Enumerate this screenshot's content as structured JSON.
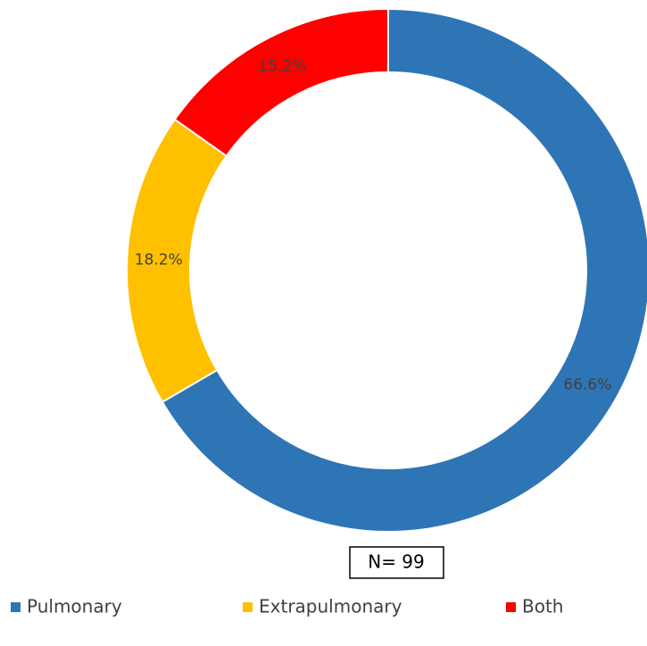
{
  "chart_data": {
    "type": "donut",
    "categories": [
      "Pulmonary",
      "Extrapulmonary",
      "Both"
    ],
    "values": [
      66.6,
      18.2,
      15.2
    ],
    "value_labels": [
      "66.6%",
      "18.2%",
      "15.2%"
    ],
    "colors": [
      "#2e75b6",
      "#ffc000",
      "#ff0000"
    ],
    "annotation": "N= 99",
    "legend": "bottom"
  }
}
